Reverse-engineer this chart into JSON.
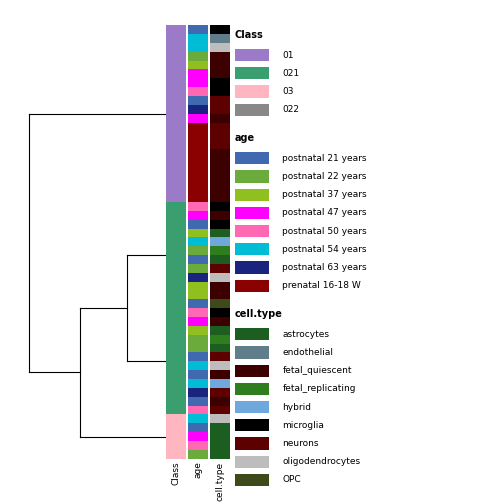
{
  "class_colors": {
    "01": "#9B7BC8",
    "021": "#3A9E6E",
    "03": "#FFB6C1",
    "022": "#FFFFFF"
  },
  "age_colors": {
    "postnatal 21 years": "#4169B0",
    "postnatal 22 years": "#6AAB3B",
    "postnatal 37 years": "#90C020",
    "postnatal 47 years": "#FF00FF",
    "postnatal 50 years": "#FF69B4",
    "postnatal 54 years": "#00BCD4",
    "postnatal 63 years": "#1A237E",
    "prenatal 16-18 W": "#8B0000"
  },
  "cell_type_colors": {
    "astrocytes": "#1B5E20",
    "endothelial": "#607D8B",
    "fetal_quiescent": "#3D0000",
    "fetal_replicating": "#2E7D1E",
    "hybrid": "#6FA8DC",
    "microglia": "#000000",
    "neurons": "#5D0000",
    "oligodendrocytes": "#BDBDBD",
    "OPC": "#3E4A1A"
  },
  "cluster1_rows": [
    {
      "class": "01",
      "age": "postnatal 21 years",
      "cell_type": "microglia"
    },
    {
      "class": "01",
      "age": "postnatal 54 years",
      "cell_type": "endothelial"
    },
    {
      "class": "01",
      "age": "postnatal 54 years",
      "cell_type": "oligodendrocytes"
    },
    {
      "class": "01",
      "age": "postnatal 22 years",
      "cell_type": "fetal_quiescent"
    },
    {
      "class": "01",
      "age": "postnatal 37 years",
      "cell_type": "fetal_quiescent"
    },
    {
      "class": "01",
      "age": "postnatal 47 years",
      "cell_type": "fetal_quiescent"
    },
    {
      "class": "01",
      "age": "postnatal 47 years",
      "cell_type": "microglia"
    },
    {
      "class": "01",
      "age": "postnatal 50 years",
      "cell_type": "microglia"
    },
    {
      "class": "01",
      "age": "postnatal 21 years",
      "cell_type": "neurons"
    },
    {
      "class": "01",
      "age": "postnatal 63 years",
      "cell_type": "neurons"
    },
    {
      "class": "01",
      "age": "postnatal 47 years",
      "cell_type": "fetal_quiescent"
    },
    {
      "class": "01",
      "age": "prenatal 16-18 W",
      "cell_type": "neurons"
    },
    {
      "class": "01",
      "age": "prenatal 16-18 W",
      "cell_type": "neurons"
    },
    {
      "class": "01",
      "age": "prenatal 16-18 W",
      "cell_type": "neurons"
    },
    {
      "class": "01",
      "age": "prenatal 16-18 W",
      "cell_type": "fetal_quiescent"
    },
    {
      "class": "01",
      "age": "prenatal 16-18 W",
      "cell_type": "fetal_quiescent"
    },
    {
      "class": "01",
      "age": "prenatal 16-18 W",
      "cell_type": "fetal_quiescent"
    },
    {
      "class": "01",
      "age": "prenatal 16-18 W",
      "cell_type": "fetal_quiescent"
    },
    {
      "class": "01",
      "age": "prenatal 16-18 W",
      "cell_type": "fetal_quiescent"
    },
    {
      "class": "01",
      "age": "prenatal 16-18 W",
      "cell_type": "fetal_quiescent"
    }
  ],
  "cluster2_rows": [
    {
      "class": "021",
      "age": "postnatal 50 years",
      "cell_type": "microglia"
    },
    {
      "class": "021",
      "age": "postnatal 47 years",
      "cell_type": "fetal_quiescent"
    },
    {
      "class": "021",
      "age": "postnatal 21 years",
      "cell_type": "microglia"
    },
    {
      "class": "021",
      "age": "postnatal 37 years",
      "cell_type": "astrocytes"
    },
    {
      "class": "021",
      "age": "postnatal 54 years",
      "cell_type": "hybrid"
    },
    {
      "class": "021",
      "age": "postnatal 22 years",
      "cell_type": "fetal_replicating"
    },
    {
      "class": "021",
      "age": "postnatal 21 years",
      "cell_type": "astrocytes"
    },
    {
      "class": "021",
      "age": "postnatal 22 years",
      "cell_type": "neurons"
    },
    {
      "class": "021",
      "age": "postnatal 63 years",
      "cell_type": "oligodendrocytes"
    },
    {
      "class": "021",
      "age": "postnatal 37 years",
      "cell_type": "fetal_quiescent"
    },
    {
      "class": "021",
      "age": "postnatal 37 years",
      "cell_type": "fetal_quiescent"
    },
    {
      "class": "021",
      "age": "postnatal 21 years",
      "cell_type": "OPC"
    }
  ],
  "cluster3_rows": [
    {
      "class": "021",
      "age": "postnatal 50 years",
      "cell_type": "microglia"
    },
    {
      "class": "021",
      "age": "postnatal 47 years",
      "cell_type": "fetal_quiescent"
    },
    {
      "class": "021",
      "age": "postnatal 37 years",
      "cell_type": "astrocytes"
    },
    {
      "class": "021",
      "age": "postnatal 22 years",
      "cell_type": "fetal_replicating"
    },
    {
      "class": "021",
      "age": "postnatal 22 years",
      "cell_type": "astrocytes"
    },
    {
      "class": "021",
      "age": "postnatal 21 years",
      "cell_type": "neurons"
    },
    {
      "class": "021",
      "age": "postnatal 54 years",
      "cell_type": "oligodendrocytes"
    },
    {
      "class": "021",
      "age": "postnatal 21 years",
      "cell_type": "fetal_quiescent"
    },
    {
      "class": "021",
      "age": "postnatal 54 years",
      "cell_type": "hybrid"
    },
    {
      "class": "021",
      "age": "postnatal 63 years",
      "cell_type": "neurons"
    },
    {
      "class": "021",
      "age": "postnatal 21 years",
      "cell_type": "fetal_quiescent"
    },
    {
      "class": "021",
      "age": "postnatal 50 years",
      "cell_type": "neurons"
    }
  ],
  "cluster4_rows": [
    {
      "class": "03",
      "age": "postnatal 54 years",
      "cell_type": "oligodendrocytes"
    },
    {
      "class": "03",
      "age": "postnatal 21 years",
      "cell_type": "astrocytes"
    },
    {
      "class": "03",
      "age": "postnatal 47 years",
      "cell_type": "astrocytes"
    },
    {
      "class": "03",
      "age": "postnatal 50 years",
      "cell_type": "astrocytes"
    },
    {
      "class": "03",
      "age": "postnatal 22 years",
      "cell_type": "astrocytes"
    }
  ],
  "figsize": [
    5.04,
    5.04
  ],
  "dpi": 100
}
